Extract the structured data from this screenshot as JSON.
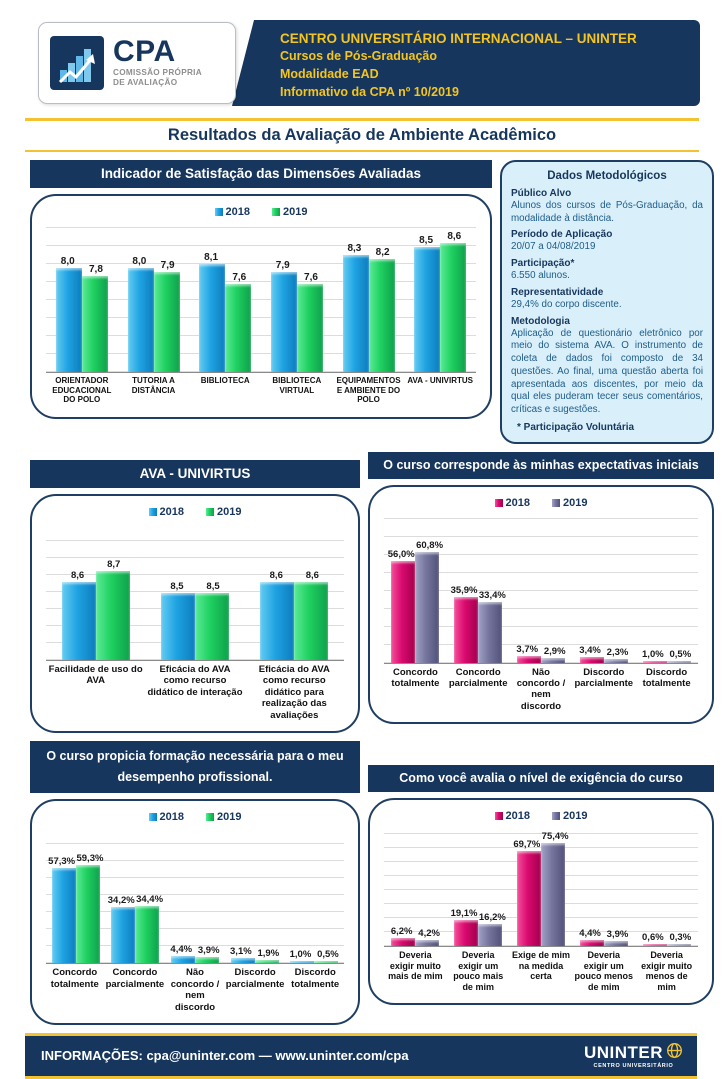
{
  "header": {
    "logo": {
      "acronym": "CPA",
      "subtitle_line1": "COMISSÃO PRÓPRIA",
      "subtitle_line2": "DE AVALIAÇÃO",
      "icon": "stairs-growth-icon"
    },
    "banner_lines": [
      "CENTRO UNIVERSITÁRIO INTERNACIONAL – UNINTER",
      "Cursos de Pós-Graduação",
      "Modalidade EAD",
      "Informativo da CPA nº 10/2019"
    ]
  },
  "page_title": "Resultados da Avaliação de Ambiente Acadêmico",
  "methodology": {
    "title": "Dados Metodológicos",
    "items": [
      {
        "label": "Público Alvo",
        "text": "Alunos dos cursos de Pós-Graduação, da modalidade à distância."
      },
      {
        "label": "Período de Aplicação",
        "text": "20/07 a 04/08/2019"
      },
      {
        "label": "Participação*",
        "text": "6.550 alunos."
      },
      {
        "label": "Representatividade",
        "text": "29,4% do corpo discente."
      },
      {
        "label": "Metodologia",
        "text": "Aplicação de questionário eletrônico por meio do sistema AVA. O instrumento de coleta de dados foi composto de 34 questões. Ao final, uma questão aberta foi apresentada aos discentes, por meio da qual eles puderam tecer seus comentários, críticas e sugestões."
      }
    ],
    "footnote": "* Participação Voluntária"
  },
  "colors": {
    "navy": "#17365D",
    "yellow": "#F2C230",
    "bar_blue_2018": "#1FA3E2",
    "bar_green_2019": "#1ED05F",
    "bar_pink_2018": "#D90A6E",
    "bar_purple_2019": "#75759E",
    "panel_bg": "#D9F0FA"
  },
  "footer": {
    "info": "INFORMAÇÕES: cpa@uninter.com — www.uninter.com/cpa",
    "logo_text": "UNINTER",
    "logo_subtext": "CENTRO UNIVERSITÁRIO"
  },
  "chart_data": [
    {
      "type": "bar",
      "title": "Indicador de Satisfação das Dimensões Avaliadas",
      "legend": [
        "2018",
        "2019"
      ],
      "categories": [
        "ORIENTADOR EDUCACIONAL DO POLO",
        "TUTORIA A DISTÂNCIA",
        "BIBLIOTECA",
        "BIBLIOTECA VIRTUAL",
        "EQUIPAMENTOS E AMBIENTE DO POLO",
        "AVA - UNIVIRTUS"
      ],
      "series": [
        {
          "name": "2018",
          "values": [
            8.0,
            8.0,
            8.1,
            7.9,
            8.3,
            8.5
          ],
          "labels": [
            "8,0",
            "8,0",
            "8,1",
            "7,9",
            "8,3",
            "8,5"
          ]
        },
        {
          "name": "2019",
          "values": [
            7.8,
            7.9,
            7.6,
            7.6,
            8.2,
            8.6
          ],
          "labels": [
            "7,8",
            "7,9",
            "7,6",
            "7,6",
            "8,2",
            "8,6"
          ]
        }
      ],
      "ylim": [
        5.5,
        9.0
      ],
      "grid": true,
      "legend_position": "top"
    },
    {
      "type": "bar",
      "title": "AVA -  UNIVIRTUS",
      "legend": [
        "2018",
        "2019"
      ],
      "categories": [
        "Facilidade de uso do AVA",
        "Eficácia do AVA como recurso didático de interação",
        "Eficácia do AVA como recurso didático para realização das avaliações"
      ],
      "series": [
        {
          "name": "2018",
          "values": [
            8.6,
            8.5,
            8.6
          ],
          "labels": [
            "8,6",
            "8,5",
            "8,6"
          ]
        },
        {
          "name": "2019",
          "values": [
            8.7,
            8.5,
            8.6
          ],
          "labels": [
            "8,7",
            "8,5",
            "8,6"
          ]
        }
      ],
      "ylim": [
        7.9,
        9.1
      ],
      "grid": true,
      "legend_position": "top"
    },
    {
      "type": "bar",
      "title": "O curso corresponde às minhas expectativas iniciais",
      "legend": [
        "2018",
        "2019"
      ],
      "categories": [
        "Concordo totalmente",
        "Concordo parcialmente",
        "Não concordo / nem discordo",
        "Discordo parcialmente",
        "Discordo totalmente"
      ],
      "series": [
        {
          "name": "2018",
          "values": [
            56.0,
            35.9,
            3.7,
            3.4,
            1.0
          ],
          "labels": [
            "56,0%",
            "35,9%",
            "3,7%",
            "3,4%",
            "1,0%"
          ]
        },
        {
          "name": "2019",
          "values": [
            60.8,
            33.4,
            2.9,
            2.3,
            0.5
          ],
          "labels": [
            "60,8%",
            "33,4%",
            "2,9%",
            "2,3%",
            "0,5%"
          ]
        }
      ],
      "ylim": [
        0,
        80
      ],
      "grid": true,
      "legend_position": "top"
    },
    {
      "type": "bar",
      "title": "O curso propicia formação necessária para o meu desempenho profissional.",
      "legend": [
        "2018",
        "2019"
      ],
      "categories": [
        "Concordo totalmente",
        "Concordo parcialmente",
        "Não concordo / nem discordo",
        "Discordo parcialmente",
        "Discordo totalmente"
      ],
      "series": [
        {
          "name": "2018",
          "values": [
            57.3,
            34.2,
            4.4,
            3.1,
            1.0
          ],
          "labels": [
            "57,3%",
            "34,2%",
            "4,4%",
            "3,1%",
            "1,0%"
          ]
        },
        {
          "name": "2019",
          "values": [
            59.3,
            34.4,
            3.9,
            1.9,
            0.5
          ],
          "labels": [
            "59,3%",
            "34,4%",
            "3,9%",
            "1,9%",
            "0,5%"
          ]
        }
      ],
      "ylim": [
        0,
        80
      ],
      "grid": true,
      "legend_position": "top"
    },
    {
      "type": "bar",
      "title": "Como você avalia o nível de exigência do curso",
      "legend": [
        "2018",
        "2019"
      ],
      "categories": [
        "Deveria exigir muito mais de mim",
        "Deveria exigir um pouco mais de mim",
        "Exige de mim na medida certa",
        "Deveria exigir um pouco menos de mim",
        "Deveria exigir muito menos de mim"
      ],
      "series": [
        {
          "name": "2018",
          "values": [
            6.2,
            19.1,
            69.7,
            4.4,
            0.6
          ],
          "labels": [
            "6,2%",
            "19,1%",
            "69,7%",
            "4,4%",
            "0,6%"
          ]
        },
        {
          "name": "2019",
          "values": [
            4.2,
            16.2,
            75.4,
            3.9,
            0.3
          ],
          "labels": [
            "4,2%",
            "16,2%",
            "75,4%",
            "3,9%",
            "0,3%"
          ]
        }
      ],
      "ylim": [
        0,
        85
      ],
      "grid": true,
      "legend_position": "top"
    }
  ]
}
